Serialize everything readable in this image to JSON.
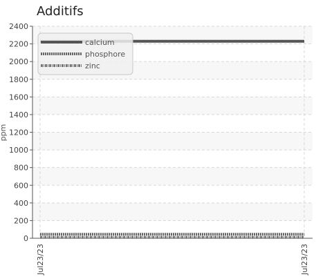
{
  "chart_data": {
    "type": "line",
    "title": "Additifs",
    "xlabel": "",
    "ylabel": "ppm",
    "ylim": [
      0,
      2400
    ],
    "yticks": [
      0,
      200,
      400,
      600,
      800,
      1000,
      1200,
      1400,
      1600,
      1800,
      2000,
      2200,
      2400
    ],
    "x": [
      "Jul23/23",
      "Jul23/23"
    ],
    "grid": true,
    "legend_position": "top-left",
    "series": [
      {
        "name": "calcium",
        "values": [
          2230,
          2230
        ],
        "color": "#555555",
        "style": "solid"
      },
      {
        "name": "phosphore",
        "values": [
          45,
          45
        ],
        "color": "#666666",
        "style": "dotted"
      },
      {
        "name": "zinc",
        "values": [
          10,
          10
        ],
        "color": "#777777",
        "style": "dash-dot"
      }
    ]
  }
}
